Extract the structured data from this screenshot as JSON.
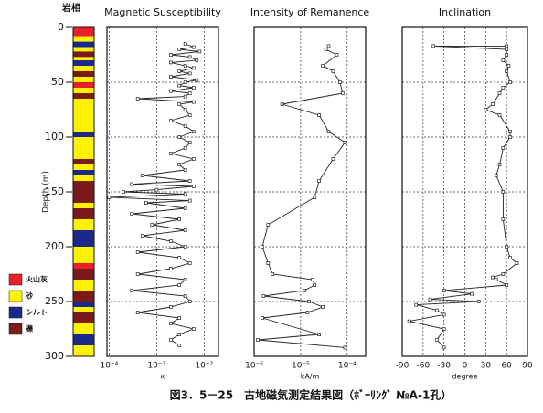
{
  "chart_data": [
    {
      "type": "lithology",
      "title": "岩相",
      "ylabel": "Depth (m)",
      "ylim": [
        300,
        0
      ],
      "yticks": [
        0,
        50,
        100,
        150,
        200,
        250,
        300
      ],
      "legend": [
        {
          "label": "火山灰",
          "color": "#e8202a"
        },
        {
          "label": "砂",
          "color": "#fff200"
        },
        {
          "label": "シルト",
          "color": "#1a2a8c"
        },
        {
          "label": "礫",
          "color": "#7a1a1a"
        }
      ],
      "boundaries": [
        0,
        8,
        13,
        18,
        22,
        27,
        30,
        35,
        40,
        45,
        50,
        55,
        60,
        65,
        95,
        100,
        120,
        125,
        130,
        135,
        140,
        160,
        165,
        175,
        185,
        200,
        215,
        220,
        230,
        240,
        250,
        255,
        260,
        270,
        280,
        290,
        300
      ],
      "lith": [
        0,
        1,
        2,
        1,
        3,
        1,
        2,
        1,
        3,
        1,
        0,
        1,
        3,
        1,
        2,
        1,
        3,
        1,
        2,
        1,
        3,
        1,
        3,
        1,
        2,
        1,
        0,
        3,
        1,
        3,
        2,
        1,
        3,
        1,
        2,
        1
      ]
    },
    {
      "type": "line",
      "title": "Magnetic Susceptibility",
      "xlabel": "κ",
      "log_x": true,
      "color": "#222",
      "xlim": [
        9e-05,
        0.02
      ],
      "xticks": [
        {
          "value": 0.0001,
          "label": "10⁻⁴"
        },
        {
          "value": 0.001,
          "label": "10⁻³"
        },
        {
          "value": 0.01,
          "label": "10⁻²"
        }
      ],
      "depth": [
        15,
        18,
        20,
        22,
        25,
        27,
        30,
        32,
        35,
        37,
        40,
        42,
        45,
        48,
        50,
        53,
        55,
        58,
        60,
        63,
        65,
        68,
        70,
        75,
        80,
        85,
        90,
        95,
        100,
        105,
        110,
        115,
        120,
        125,
        130,
        135,
        140,
        143,
        145,
        148,
        150,
        152,
        155,
        158,
        160,
        165,
        170,
        175,
        180,
        185,
        190,
        195,
        200,
        205,
        210,
        215,
        220,
        225,
        230,
        235,
        240,
        245,
        250,
        255,
        260,
        265,
        270,
        275,
        280,
        285,
        290
      ],
      "values": [
        0.004,
        0.006,
        0.003,
        0.008,
        0.002,
        0.005,
        0.007,
        0.002,
        0.004,
        0.006,
        0.003,
        0.005,
        0.002,
        0.007,
        0.004,
        0.003,
        0.006,
        0.002,
        0.005,
        0.004,
        0.0004,
        0.006,
        0.003,
        0.004,
        0.005,
        0.002,
        0.004,
        0.006,
        0.003,
        0.005,
        0.004,
        0.002,
        0.006,
        0.003,
        0.004,
        0.0005,
        0.005,
        0.0003,
        0.006,
        0.001,
        0.0002,
        0.004,
        0.0001,
        0.005,
        0.0006,
        0.004,
        0.0003,
        0.003,
        0.0008,
        0.004,
        0.0005,
        0.002,
        0.004,
        0.0004,
        0.003,
        0.005,
        0.002,
        0.0004,
        0.004,
        0.003,
        0.0003,
        0.004,
        0.005,
        0.002,
        0.0004,
        0.003,
        0.002,
        0.006,
        0.003,
        0.002,
        0.003
      ]
    },
    {
      "type": "line",
      "title": "Intensity of Remanence",
      "xlabel": "kA/m",
      "log_x": true,
      "color": "#222",
      "xlim": [
        1e-06,
        0.00025
      ],
      "xticks": [
        {
          "value": 1e-06,
          "label": "10⁻⁶"
        },
        {
          "value": 1e-05,
          "label": "10⁻⁵"
        },
        {
          "value": 0.0001,
          "label": "10⁻⁴"
        }
      ],
      "depth": [
        17,
        20,
        25,
        35,
        40,
        50,
        60,
        70,
        80,
        95,
        105,
        120,
        140,
        155,
        180,
        200,
        215,
        225,
        230,
        235,
        240,
        245,
        250,
        255,
        260,
        265,
        280,
        285,
        292
      ],
      "values": [
        4e-05,
        3.5e-05,
        6e-05,
        3e-05,
        5e-05,
        7e-05,
        8e-05,
        4e-06,
        2.5e-05,
        4e-05,
        9e-05,
        5e-05,
        2.5e-05,
        2e-05,
        2e-06,
        1.5e-06,
        2e-06,
        2.5e-06,
        1.8e-05,
        2e-05,
        1.2e-05,
        1.6e-06,
        1.5e-05,
        3e-05,
        1.4e-05,
        1.5e-06,
        2.5e-05,
        1.2e-06,
        9e-05
      ]
    },
    {
      "type": "line",
      "title": "Inclination",
      "xlabel": "degree",
      "log_x": false,
      "color": "#222",
      "xlim": [
        -90,
        90
      ],
      "xticks": [
        -90,
        -60,
        -30,
        0,
        30,
        60,
        90
      ],
      "depth": [
        17,
        17,
        20,
        25,
        30,
        35,
        40,
        50,
        55,
        60,
        70,
        75,
        80,
        95,
        100,
        110,
        125,
        135,
        150,
        175,
        200,
        210,
        215,
        225,
        228,
        230,
        235,
        240,
        243,
        248,
        250,
        253,
        258,
        262,
        268,
        275,
        285,
        292
      ],
      "values": [
        60,
        -45,
        60,
        60,
        55,
        63,
        60,
        65,
        55,
        50,
        40,
        30,
        50,
        65,
        65,
        55,
        50,
        45,
        55,
        55,
        60,
        65,
        75,
        55,
        40,
        45,
        60,
        -30,
        10,
        -50,
        20,
        -70,
        -40,
        -30,
        -80,
        -30,
        -40,
        -30
      ]
    }
  ],
  "caption": "図3．5－25　古地磁気測定結果図（ﾎﾞｰﾘﾝｸﾞ №A-1孔）"
}
